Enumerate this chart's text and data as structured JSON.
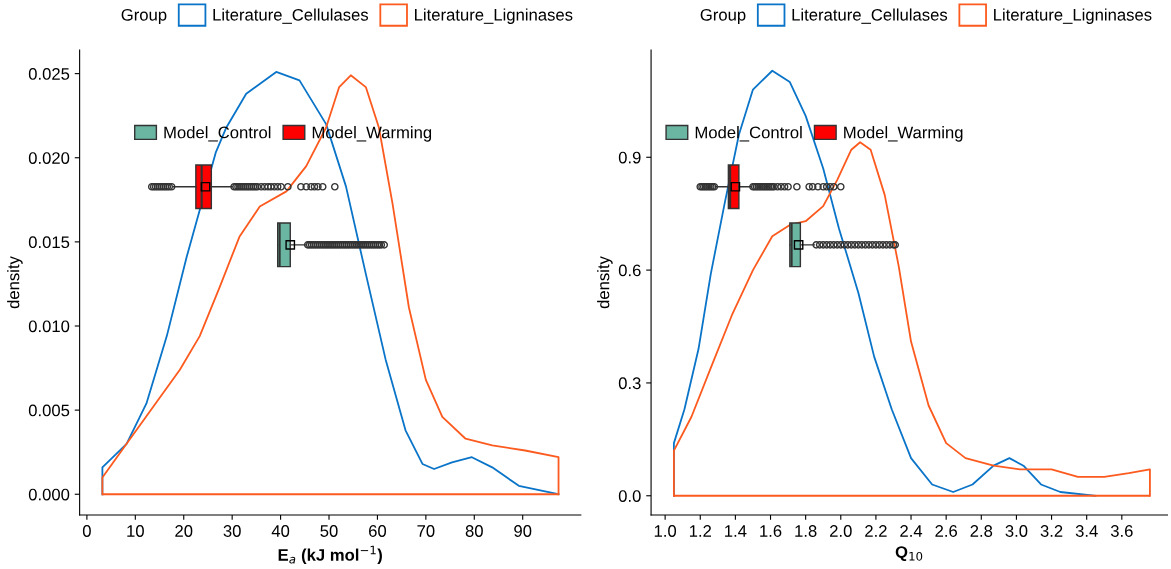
{
  "chart_data": [
    {
      "type": "line",
      "xlabel": "E$_{a}$ (kJ mol$^{−1}$)",
      "ylabel": "density",
      "legend_title": "Group",
      "legend": "top",
      "grid": false,
      "xlim": [
        -1.5,
        102
      ],
      "xticks": [
        0,
        10,
        20,
        30,
        40,
        50,
        60,
        70,
        80,
        90
      ],
      "ylim": [
        -0.00123,
        0.0264
      ],
      "yticks": [
        {
          "value": 0,
          "label": "0.000"
        },
        {
          "value": 0.005,
          "label": "0.005"
        },
        {
          "value": 0.01,
          "label": "0.010"
        },
        {
          "value": 0.015,
          "label": "0.015"
        },
        {
          "value": 0.02,
          "label": "0.020"
        },
        {
          "value": 0.025,
          "label": "0.025"
        }
      ],
      "ref_lines": [
        {
          "axis": "y",
          "value": 0,
          "color": "#fc5a1e"
        }
      ],
      "series": [
        {
          "name": "Literature_Cellulases",
          "color": "#0a74c8",
          "x": [
            3.2,
            3.2,
            8.2,
            12.3,
            16.5,
            20.6,
            26.6,
            28.8,
            32.9,
            39.1,
            43.9,
            49.4,
            53.5,
            57.6,
            61.7,
            65.8,
            69.3,
            71.7,
            75.4,
            79.5,
            83.7,
            89.2,
            97.4
          ],
          "values": [
            0.0,
            0.0016,
            0.003,
            0.0054,
            0.0094,
            0.0141,
            0.0203,
            0.0218,
            0.0238,
            0.0251,
            0.0246,
            0.022,
            0.0183,
            0.0131,
            0.008,
            0.0038,
            0.0018,
            0.0015,
            0.0019,
            0.0022,
            0.0016,
            0.0005,
            0.0
          ]
        },
        {
          "name": "Literature_Ligninases",
          "color": "#fc5a1e",
          "x": [
            3.2,
            3.2,
            8.2,
            13.7,
            19.2,
            23.3,
            27.4,
            31.5,
            35.7,
            41.2,
            45.3,
            49.4,
            52.1,
            54.5,
            57.6,
            60.3,
            63.1,
            66.5,
            70.0,
            73.4,
            78.2,
            83.7,
            90.5,
            97.4,
            97.4
          ],
          "values": [
            0.0,
            0.001,
            0.003,
            0.0052,
            0.0074,
            0.0094,
            0.0123,
            0.0153,
            0.0171,
            0.018,
            0.0195,
            0.0218,
            0.0242,
            0.0249,
            0.0242,
            0.0218,
            0.0173,
            0.0111,
            0.0068,
            0.0046,
            0.0033,
            0.0029,
            0.0026,
            0.0022,
            0.0
          ]
        }
      ]
    },
    {
      "type": "box",
      "orientation": "horizontal",
      "legend": "top",
      "tick_labels": false,
      "categories": [
        null
      ],
      "xlim": [
        -1.5,
        102
      ],
      "xticks": [
        0,
        10,
        20,
        30,
        40,
        50,
        60,
        70,
        80,
        90
      ],
      "series": [
        {
          "name": "Model_Warming",
          "color": "#ff0000",
          "boxes": [
            {
              "low": 17.9,
              "q1": 22.5,
              "median": 23.7,
              "q3": 25.7,
              "high": 30.0,
              "mean": 24.5,
              "outliers": [
                13.4,
                13.8,
                14.2,
                14.6,
                15.0,
                15.4,
                15.8,
                16.2,
                16.6,
                17.0,
                17.5,
                30.4,
                30.8,
                31.2,
                31.6,
                32.0,
                32.4,
                32.8,
                33.2,
                33.6,
                34.0,
                34.4,
                34.8,
                35.2,
                36.0,
                36.7,
                37.4,
                38.0,
                38.7,
                39.4,
                40.1,
                41.5,
                44.2,
                45.3,
                46.3,
                47.0,
                47.7,
                48.7,
                51.2
              ]
            }
          ]
        }
      ]
    },
    {
      "type": "box",
      "orientation": "horizontal",
      "legend": "top left",
      "tick_labels": false,
      "categories": [
        null
      ],
      "xlim": [
        -1.5,
        102
      ],
      "xticks": [
        0,
        10,
        20,
        30,
        40,
        50,
        60,
        70,
        80,
        90
      ],
      "series": [
        {
          "name": "Model_Control",
          "color": "#6bb5a3",
          "boxes": [
            {
              "low": 39.4,
              "q1": 39.4,
              "median": 39.8,
              "q3": 42.0,
              "high": 45.3,
              "mean": 42.0,
              "outliers": [
                45.6,
                46.0,
                46.4,
                46.8,
                47.2,
                47.6,
                48.0,
                48.4,
                48.8,
                49.2,
                49.6,
                50.0,
                50.4,
                50.8,
                51.2,
                51.6,
                52.0,
                52.4,
                52.8,
                53.2,
                53.6,
                54.0,
                54.4,
                54.8,
                55.2,
                55.6,
                56.0,
                56.4,
                56.8,
                57.2,
                57.6,
                58.0,
                58.4,
                58.8,
                59.2,
                59.6,
                60.0,
                60.4,
                60.8,
                61.4
              ]
            }
          ]
        }
      ]
    },
    {
      "type": "line",
      "xlabel": "Q$_{10}$",
      "ylabel": "density",
      "legend_title": "Group",
      "legend": "top",
      "grid": false,
      "xlim": [
        0.92,
        3.86
      ],
      "xticks": [
        {
          "value": 1.0,
          "label": "1.0"
        },
        1.2,
        1.4,
        1.6,
        1.8,
        {
          "value": 2.0,
          "label": "2.0"
        },
        2.2,
        2.4,
        2.6,
        2.8,
        {
          "value": 3.0,
          "label": "3.0"
        },
        3.2,
        3.4,
        3.6
      ],
      "ylim": [
        -0.051,
        1.185
      ],
      "yticks": [
        {
          "value": 0,
          "label": "0.0"
        },
        0.3,
        0.6,
        0.9
      ],
      "ref_lines": [
        {
          "axis": "y",
          "value": 0,
          "color": "#fc5a1e"
        }
      ],
      "series": [
        {
          "name": "Literature_Cellulases",
          "color": "#0a74c8",
          "x": [
            1.05,
            1.05,
            1.11,
            1.19,
            1.26,
            1.34,
            1.42,
            1.5,
            1.61,
            1.71,
            1.8,
            1.9,
            1.99,
            2.1,
            2.19,
            2.29,
            2.4,
            2.52,
            2.64,
            2.75,
            2.87,
            2.96,
            3.04,
            3.14,
            3.25,
            3.45
          ],
          "values": [
            0.0,
            0.14,
            0.23,
            0.39,
            0.59,
            0.78,
            0.96,
            1.08,
            1.13,
            1.1,
            1.01,
            0.87,
            0.71,
            0.54,
            0.37,
            0.23,
            0.1,
            0.03,
            0.01,
            0.03,
            0.08,
            0.1,
            0.08,
            0.03,
            0.01,
            0.0
          ]
        },
        {
          "name": "Literature_Ligninases",
          "color": "#fc5a1e",
          "x": [
            1.05,
            1.05,
            1.15,
            1.26,
            1.38,
            1.5,
            1.61,
            1.71,
            1.8,
            1.9,
            1.98,
            2.06,
            2.11,
            2.17,
            2.25,
            2.33,
            2.4,
            2.5,
            2.6,
            2.71,
            2.87,
            3.02,
            3.2,
            3.35,
            3.5,
            3.64,
            3.76,
            3.76
          ],
          "values": [
            0.0,
            0.12,
            0.21,
            0.34,
            0.48,
            0.6,
            0.69,
            0.72,
            0.73,
            0.77,
            0.84,
            0.92,
            0.94,
            0.92,
            0.8,
            0.61,
            0.41,
            0.24,
            0.14,
            0.1,
            0.08,
            0.07,
            0.07,
            0.05,
            0.05,
            0.06,
            0.07,
            0.0
          ]
        }
      ]
    },
    {
      "type": "box",
      "orientation": "horizontal",
      "legend": "top left",
      "tick_labels": false,
      "categories": [
        null
      ],
      "xlim": [
        0.92,
        3.86
      ],
      "xticks": [
        1,
        1.2,
        1.4,
        1.6,
        1.8,
        2,
        2.2,
        2.4,
        2.6,
        2.8,
        3,
        3.2,
        3.4,
        3.6
      ],
      "series": [
        {
          "name": "Model_Warming",
          "color": "#ff0000",
          "boxes": [
            {
              "low": 1.29,
              "q1": 1.36,
              "median": 1.37,
              "q3": 1.42,
              "high": 1.49,
              "mean": 1.4,
              "outliers": [
                1.2,
                1.21,
                1.22,
                1.23,
                1.24,
                1.25,
                1.26,
                1.27,
                1.28,
                1.5,
                1.51,
                1.52,
                1.53,
                1.54,
                1.55,
                1.56,
                1.57,
                1.58,
                1.59,
                1.6,
                1.61,
                1.62,
                1.64,
                1.66,
                1.68,
                1.7,
                1.75,
                1.82,
                1.84,
                1.87,
                1.9,
                1.92,
                1.94,
                1.96,
                2.0
              ]
            }
          ]
        }
      ]
    },
    {
      "type": "box",
      "orientation": "horizontal",
      "legend": "top left",
      "tick_labels": false,
      "categories": [
        null
      ],
      "xlim": [
        0.92,
        3.86
      ],
      "xticks": [
        1,
        1.2,
        1.4,
        1.6,
        1.8,
        2,
        2.2,
        2.4,
        2.6,
        2.8,
        3,
        3.2,
        3.4,
        3.6
      ],
      "series": [
        {
          "name": "Model_Control",
          "color": "#6bb5a3",
          "boxes": [
            {
              "low": 1.71,
              "q1": 1.71,
              "median": 1.72,
              "q3": 1.77,
              "high": 1.85,
              "mean": 1.76,
              "outliers": [
                1.86,
                1.88,
                1.9,
                1.92,
                1.94,
                1.96,
                1.98,
                2.0,
                2.02,
                2.04,
                2.06,
                2.08,
                2.1,
                2.12,
                2.14,
                2.16,
                2.18,
                2.2,
                2.22,
                2.24,
                2.26,
                2.28,
                2.3,
                2.31
              ]
            }
          ]
        }
      ]
    }
  ]
}
